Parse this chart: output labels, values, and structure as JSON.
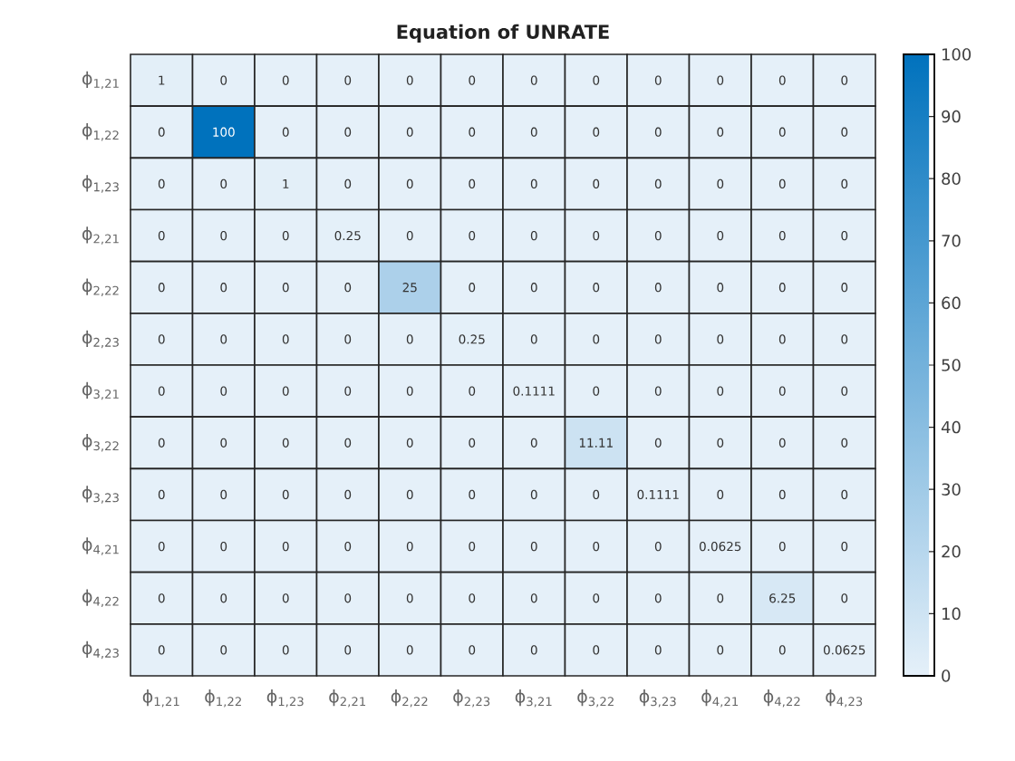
{
  "chart_data": {
    "type": "heatmap",
    "title": "Equation of UNRATE",
    "categories": [
      "ϕ$_{1,21}$",
      "ϕ$_{1,22}$",
      "ϕ$_{1,23}$",
      "ϕ$_{2,21}$",
      "ϕ$_{2,22}$",
      "ϕ$_{2,23}$",
      "ϕ$_{3,21}$",
      "ϕ$_{3,22}$",
      "ϕ$_{3,23}$",
      "ϕ$_{4,21}$",
      "ϕ$_{4,22}$",
      "ϕ$_{4,23}$"
    ],
    "y_categories": [
      "ϕ$_{1,21}$",
      "ϕ$_{1,22}$",
      "ϕ$_{1,23}$",
      "ϕ$_{2,21}$",
      "ϕ$_{2,22}$",
      "ϕ$_{2,23}$",
      "ϕ$_{3,21}$",
      "ϕ$_{3,22}$",
      "ϕ$_{3,23}$",
      "ϕ$_{4,21}$",
      "ϕ$_{4,22}$",
      "ϕ$_{4,23}$"
    ],
    "cells": [
      [
        1,
        0,
        0,
        0,
        0,
        0,
        0,
        0,
        0,
        0,
        0,
        0
      ],
      [
        0,
        100,
        0,
        0,
        0,
        0,
        0,
        0,
        0,
        0,
        0,
        0
      ],
      [
        0,
        0,
        1,
        0,
        0,
        0,
        0,
        0,
        0,
        0,
        0,
        0
      ],
      [
        0,
        0,
        0,
        0.25,
        0,
        0,
        0,
        0,
        0,
        0,
        0,
        0
      ],
      [
        0,
        0,
        0,
        0,
        25,
        0,
        0,
        0,
        0,
        0,
        0,
        0
      ],
      [
        0,
        0,
        0,
        0,
        0,
        0.25,
        0,
        0,
        0,
        0,
        0,
        0
      ],
      [
        0,
        0,
        0,
        0,
        0,
        0,
        0.1111,
        0,
        0,
        0,
        0,
        0
      ],
      [
        0,
        0,
        0,
        0,
        0,
        0,
        0,
        11.11,
        0,
        0,
        0,
        0
      ],
      [
        0,
        0,
        0,
        0,
        0,
        0,
        0,
        0,
        0.1111,
        0,
        0,
        0
      ],
      [
        0,
        0,
        0,
        0,
        0,
        0,
        0,
        0,
        0,
        0.0625,
        0,
        0
      ],
      [
        0,
        0,
        0,
        0,
        0,
        0,
        0,
        0,
        0,
        0,
        6.25,
        0
      ],
      [
        0,
        0,
        0,
        0,
        0,
        0,
        0,
        0,
        0,
        0,
        0,
        0.0625
      ]
    ],
    "clim": [
      0,
      100
    ],
    "cticks": [
      0,
      10,
      20,
      30,
      40,
      50,
      60,
      70,
      80,
      90,
      100
    ],
    "data_labels": true
  }
}
